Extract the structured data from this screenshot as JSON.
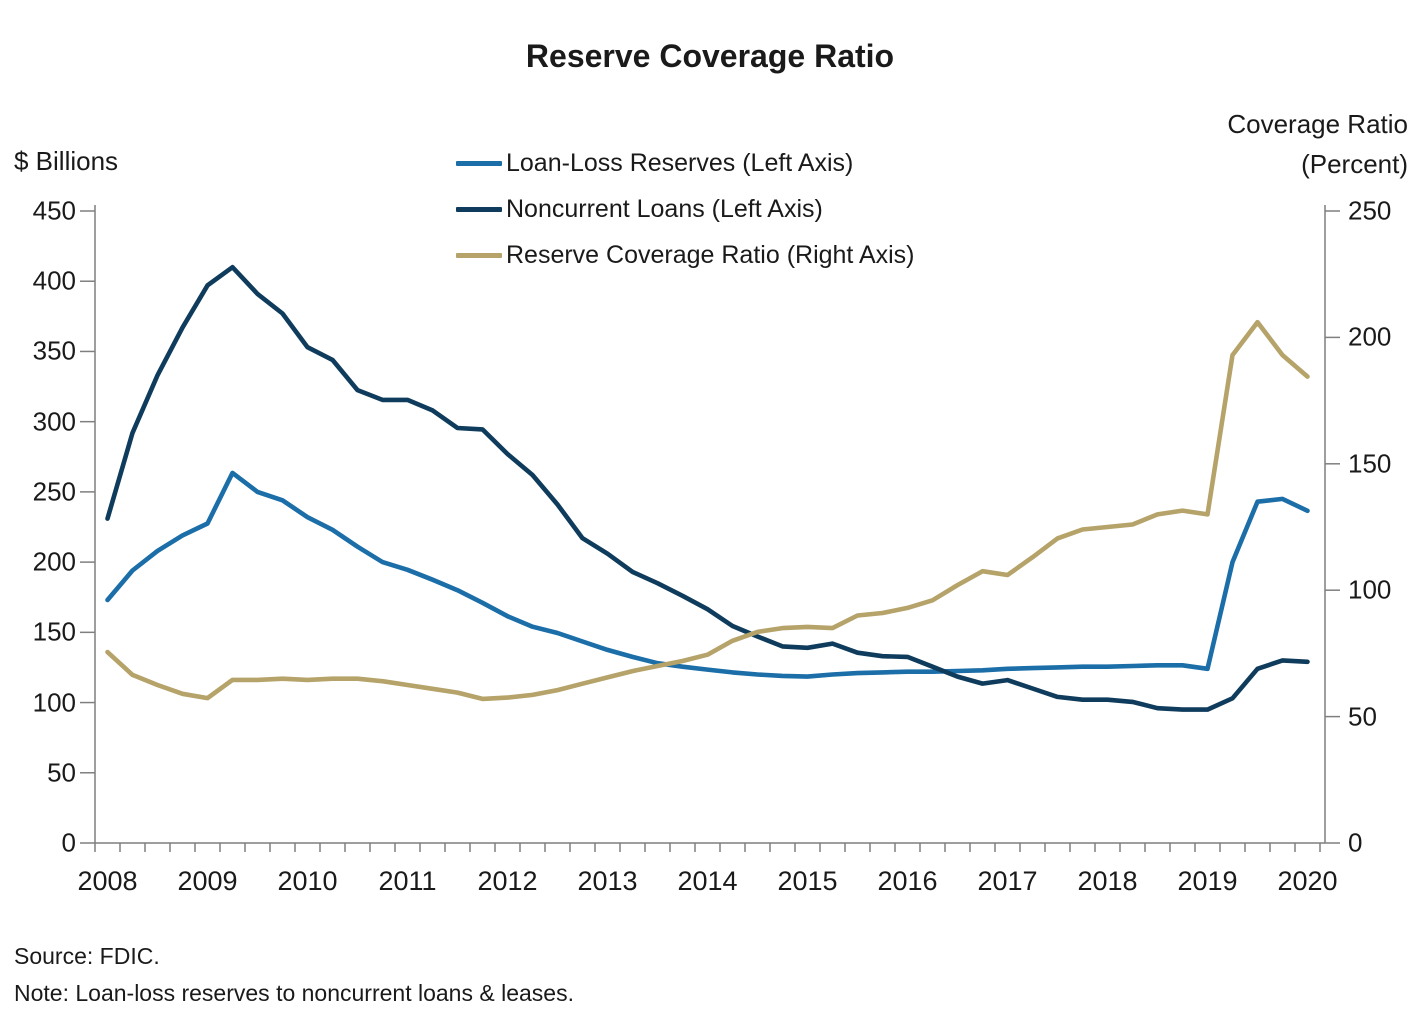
{
  "title": "Reserve Coverage Ratio",
  "left_axis": {
    "unit_label": "$ Billions",
    "ticks": [
      0,
      50,
      100,
      150,
      200,
      250,
      300,
      350,
      400,
      450
    ],
    "min": 0,
    "max": 450
  },
  "right_axis": {
    "unit_label_line1": "Coverage Ratio",
    "unit_label_line2": "(Percent)",
    "ticks": [
      0,
      50,
      100,
      150,
      200,
      250
    ],
    "min": 0,
    "max": 250
  },
  "x_axis": {
    "year_labels": [
      "2008",
      "2009",
      "2010",
      "2011",
      "2012",
      "2013",
      "2014",
      "2015",
      "2016",
      "2017",
      "2018",
      "2019",
      "2020"
    ]
  },
  "legend": [
    {
      "label": "Loan-Loss Reserves (Left Axis)",
      "color": "#1b6ea8"
    },
    {
      "label": "Noncurrent Loans (Left Axis)",
      "color": "#0f3c5c"
    },
    {
      "label": "Reserve Coverage Ratio (Right Axis)",
      "color": "#b5a36a"
    }
  ],
  "footer": {
    "source": "Source: FDIC.",
    "note": "Note: Loan-loss reserves to noncurrent loans & leases."
  },
  "colors": {
    "loan_loss_reserves": "#1b6ea8",
    "noncurrent_loans": "#0f3c5c",
    "reserve_coverage_ratio": "#b5a36a",
    "axis": "#7f7f7f",
    "text": "#1a1a1a"
  },
  "chart_data": {
    "type": "line",
    "title": "Reserve Coverage Ratio",
    "x_frequency": "quarterly",
    "x_start": "2008 Q4",
    "x_end": "2020 Q4",
    "x_year_tick_labels": [
      "2008",
      "2009",
      "2010",
      "2011",
      "2012",
      "2013",
      "2014",
      "2015",
      "2016",
      "2017",
      "2018",
      "2019",
      "2020"
    ],
    "left_axis_label": "$ Billions",
    "right_axis_label": "Coverage Ratio (Percent)",
    "left_ylim": [
      0,
      450
    ],
    "right_ylim": [
      0,
      250
    ],
    "grid": false,
    "legend_position": "top-center",
    "series": [
      {
        "name": "Loan-Loss Reserves (Left Axis)",
        "axis": "left",
        "color": "#1b6ea8",
        "values": [
          173,
          194,
          208,
          219,
          227.5,
          263.5,
          250,
          244,
          232,
          223,
          211,
          200,
          194.5,
          187.5,
          180,
          171,
          161.5,
          154,
          149.5,
          143.5,
          137.5,
          132.5,
          128,
          125.5,
          123.5,
          121.5,
          120,
          119,
          118.5,
          120,
          121,
          121.5,
          122,
          122,
          122.5,
          123,
          124,
          124.5,
          125,
          125.5,
          125.5,
          126,
          126.5,
          126.5,
          124,
          200,
          243,
          245,
          236.5
        ]
      },
      {
        "name": "Noncurrent Loans (Left Axis)",
        "axis": "left",
        "color": "#0f3c5c",
        "values": [
          231,
          292,
          333,
          367,
          397,
          410,
          391,
          377,
          353,
          344,
          322.5,
          315.5,
          315.5,
          308,
          295.5,
          294.5,
          277,
          262,
          241,
          217,
          206,
          193,
          185,
          176,
          166.5,
          154.5,
          147,
          140,
          139,
          142,
          135.5,
          133,
          132.5,
          125.5,
          118.5,
          113.5,
          116,
          110,
          104,
          102,
          102,
          100.5,
          96,
          95,
          95,
          103,
          124,
          130,
          129
        ]
      },
      {
        "name": "Reserve Coverage Ratio (Right Axis)",
        "axis": "right",
        "color": "#b5a36a",
        "values": [
          75.5,
          66.5,
          62.5,
          59,
          57.3,
          64.5,
          64.5,
          65,
          64.5,
          65,
          65,
          64,
          62.5,
          61,
          59.5,
          57,
          57.5,
          58.6,
          60.5,
          63,
          65.5,
          68,
          70,
          72,
          74.5,
          80,
          83.5,
          85,
          85.5,
          85,
          90,
          91,
          93,
          96,
          102,
          107.5,
          106,
          113,
          120.5,
          124,
          125,
          126,
          130,
          131.5,
          130,
          193,
          206,
          193,
          184.5
        ]
      }
    ]
  }
}
